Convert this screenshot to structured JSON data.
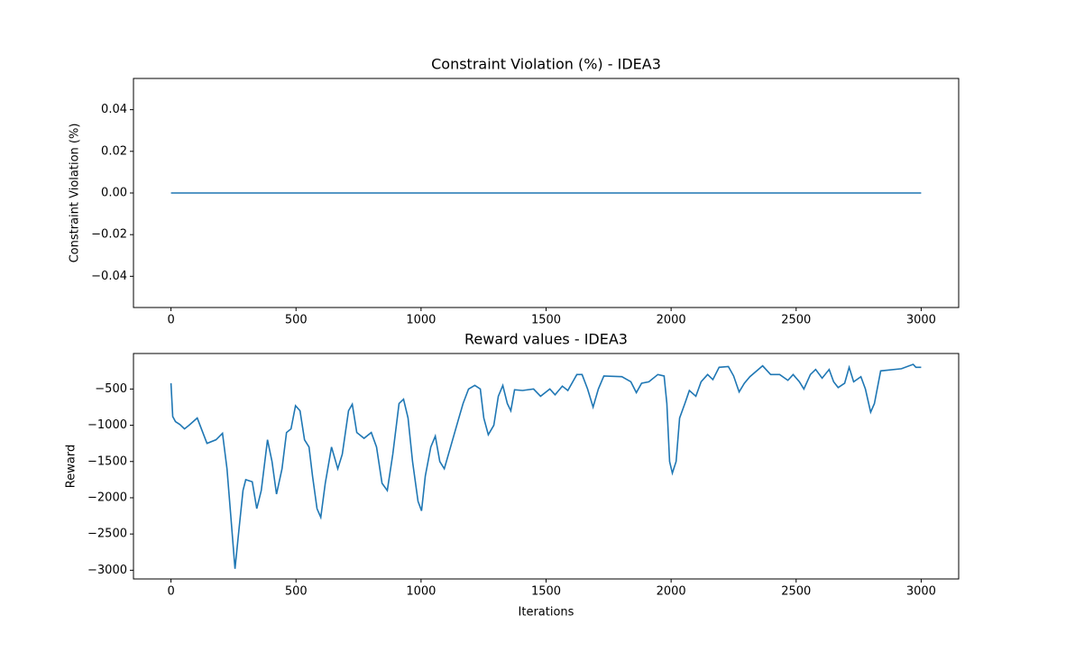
{
  "chart_data": [
    {
      "type": "line",
      "title": "Constraint Violation (%) - IDEA3",
      "ylabel": "Constraint Violation (%)",
      "x": [
        0,
        3000
      ],
      "values": [
        0,
        0
      ],
      "color": "#1f77b4",
      "xlim": [
        -150,
        3150
      ],
      "ylim": [
        -0.055,
        0.055
      ],
      "xticks": [
        0,
        500,
        1000,
        1500,
        2000,
        2500,
        3000
      ],
      "yticks": [
        {
          "value": -0.04,
          "label": "−0.04"
        },
        {
          "value": -0.02,
          "label": "−0.02"
        },
        {
          "value": 0,
          "label": "0.00"
        },
        0.02,
        0.04
      ]
    },
    {
      "type": "line",
      "title": "Reward values - IDEA3",
      "xlabel": "Iterations",
      "ylabel": "Reward",
      "x": [
        0,
        7,
        18,
        36,
        54,
        72,
        105,
        144,
        180,
        206,
        224,
        238,
        256,
        270,
        288,
        299,
        325,
        343,
        361,
        386,
        404,
        422,
        444,
        462,
        480,
        498,
        516,
        534,
        552,
        566,
        584,
        599,
        617,
        642,
        667,
        685,
        710,
        725,
        743,
        772,
        801,
        822,
        844,
        865,
        887,
        912,
        930,
        948,
        966,
        988,
        1002,
        1017,
        1039,
        1057,
        1075,
        1093,
        1118,
        1147,
        1168,
        1190,
        1215,
        1237,
        1251,
        1269,
        1291,
        1309,
        1327,
        1345,
        1359,
        1374,
        1406,
        1450,
        1478,
        1515,
        1536,
        1565,
        1587,
        1623,
        1644,
        1666,
        1688,
        1709,
        1731,
        1803,
        1839,
        1861,
        1882,
        1911,
        1947,
        1972,
        1983,
        1994,
        2005,
        2020,
        2034,
        2055,
        2073,
        2099,
        2120,
        2146,
        2167,
        2192,
        2229,
        2250,
        2272,
        2293,
        2315,
        2366,
        2398,
        2434,
        2467,
        2488,
        2513,
        2531,
        2557,
        2578,
        2604,
        2632,
        2650,
        2668,
        2694,
        2712,
        2730,
        2759,
        2777,
        2798,
        2813,
        2838,
        2921,
        2968,
        2979,
        3000
      ],
      "values": [
        -420,
        -880,
        -950,
        -990,
        -1050,
        -1000,
        -900,
        -1250,
        -1200,
        -1110,
        -1600,
        -2200,
        -2980,
        -2500,
        -1900,
        -1750,
        -1780,
        -2150,
        -1900,
        -1200,
        -1500,
        -1950,
        -1600,
        -1100,
        -1050,
        -730,
        -800,
        -1200,
        -1300,
        -1700,
        -2150,
        -2270,
        -1800,
        -1300,
        -1600,
        -1400,
        -800,
        -710,
        -1100,
        -1180,
        -1100,
        -1300,
        -1800,
        -1900,
        -1400,
        -700,
        -640,
        -900,
        -1500,
        -2050,
        -2180,
        -1700,
        -1300,
        -1150,
        -1500,
        -1600,
        -1300,
        -950,
        -700,
        -500,
        -450,
        -500,
        -900,
        -1130,
        -1000,
        -600,
        -450,
        -700,
        -800,
        -510,
        -520,
        -500,
        -600,
        -500,
        -580,
        -460,
        -520,
        -300,
        -300,
        -500,
        -750,
        -500,
        -320,
        -330,
        -400,
        -550,
        -420,
        -400,
        -300,
        -320,
        -700,
        -1500,
        -1660,
        -1500,
        -900,
        -700,
        -520,
        -600,
        -400,
        -300,
        -370,
        -200,
        -190,
        -320,
        -540,
        -420,
        -330,
        -180,
        -300,
        -300,
        -380,
        -300,
        -400,
        -500,
        -300,
        -230,
        -350,
        -230,
        -400,
        -480,
        -420,
        -200,
        -400,
        -330,
        -500,
        -820,
        -700,
        -250,
        -220,
        -160,
        -200,
        -200
      ],
      "color": "#1f77b4",
      "xlim": [
        -150,
        3150
      ],
      "ylim": [
        -3120,
        -10
      ],
      "xticks": [
        0,
        500,
        1000,
        1500,
        2000,
        2500,
        3000
      ],
      "yticks": [
        {
          "value": -3000,
          "label": "−3000"
        },
        {
          "value": -2500,
          "label": "−2500"
        },
        {
          "value": -2000,
          "label": "−2000"
        },
        {
          "value": -1500,
          "label": "−1500"
        },
        {
          "value": -1000,
          "label": "−1000"
        },
        {
          "value": -500,
          "label": "−500"
        }
      ]
    }
  ]
}
